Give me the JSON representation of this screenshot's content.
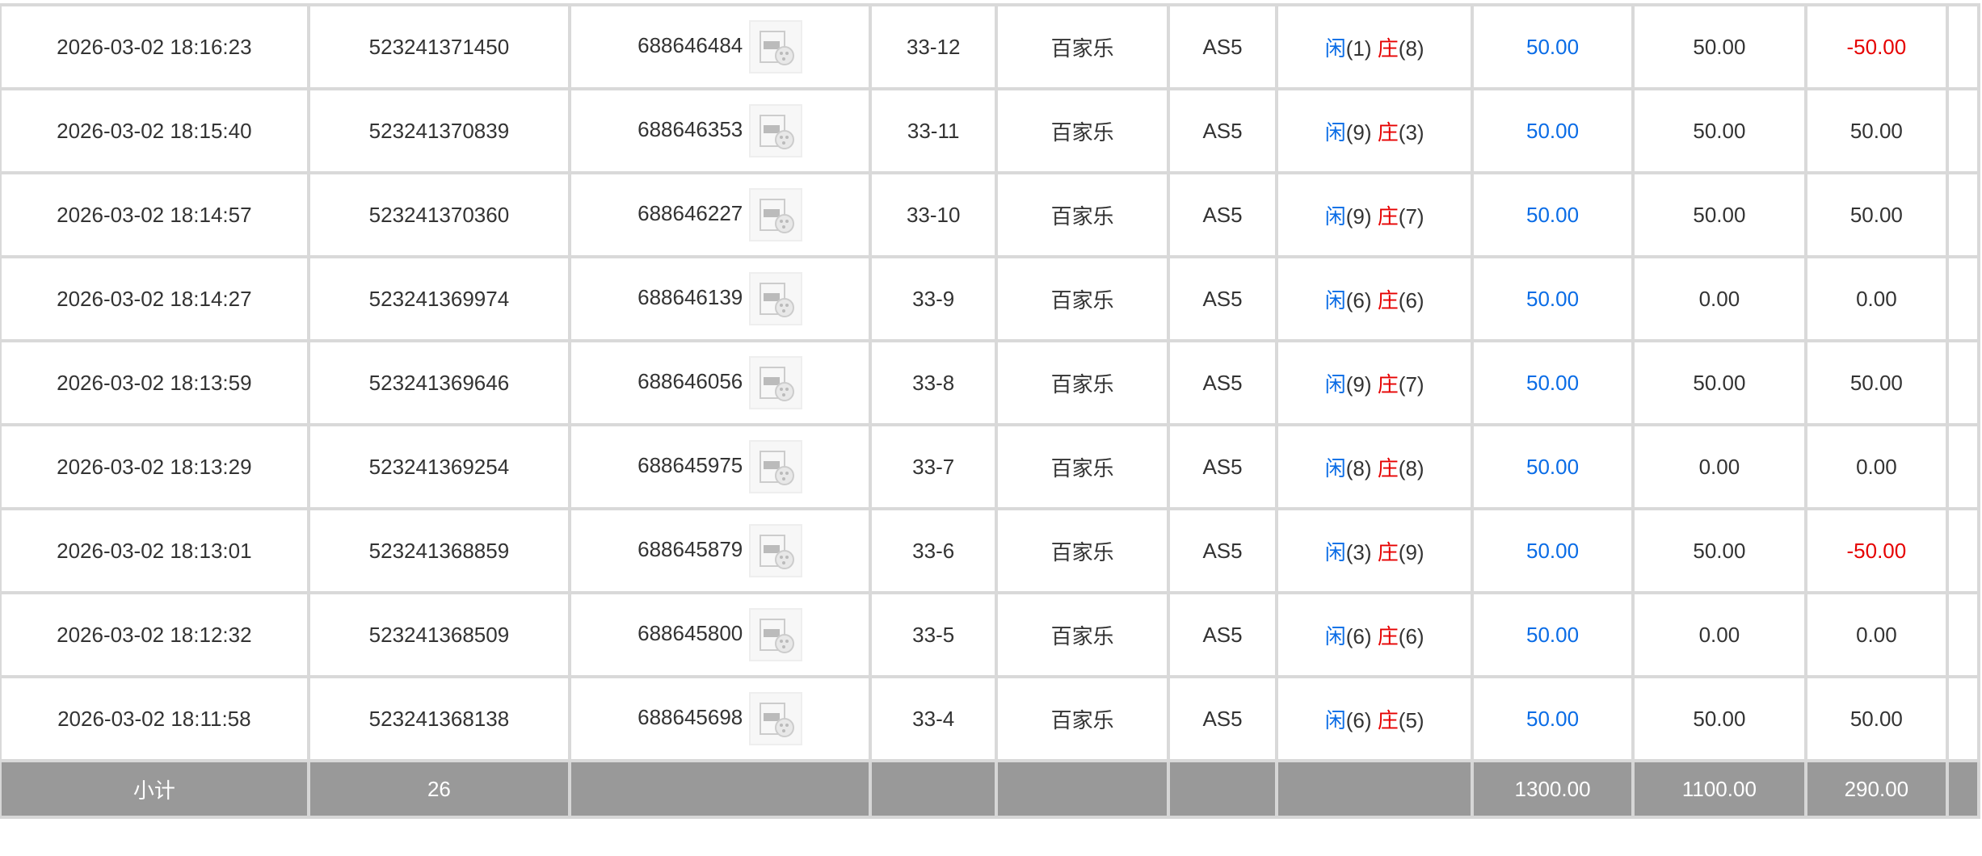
{
  "rows": [
    {
      "time": "2026-03-02 18:16:23",
      "order": "523241371450",
      "round": "688646484",
      "table": "33-12",
      "game": "百家乐",
      "room": "AS5",
      "player": "闲",
      "player_pts": "(1)",
      "banker": "庄",
      "banker_pts": "(8)",
      "bet": "50.00",
      "valid": "50.00",
      "result": "-50.00",
      "neg": true
    },
    {
      "time": "2026-03-02 18:15:40",
      "order": "523241370839",
      "round": "688646353",
      "table": "33-11",
      "game": "百家乐",
      "room": "AS5",
      "player": "闲",
      "player_pts": "(9)",
      "banker": "庄",
      "banker_pts": "(3)",
      "bet": "50.00",
      "valid": "50.00",
      "result": "50.00",
      "neg": false
    },
    {
      "time": "2026-03-02 18:14:57",
      "order": "523241370360",
      "round": "688646227",
      "table": "33-10",
      "game": "百家乐",
      "room": "AS5",
      "player": "闲",
      "player_pts": "(9)",
      "banker": "庄",
      "banker_pts": "(7)",
      "bet": "50.00",
      "valid": "50.00",
      "result": "50.00",
      "neg": false
    },
    {
      "time": "2026-03-02 18:14:27",
      "order": "523241369974",
      "round": "688646139",
      "table": "33-9",
      "game": "百家乐",
      "room": "AS5",
      "player": "闲",
      "player_pts": "(6)",
      "banker": "庄",
      "banker_pts": "(6)",
      "bet": "50.00",
      "valid": "0.00",
      "result": "0.00",
      "neg": false
    },
    {
      "time": "2026-03-02 18:13:59",
      "order": "523241369646",
      "round": "688646056",
      "table": "33-8",
      "game": "百家乐",
      "room": "AS5",
      "player": "闲",
      "player_pts": "(9)",
      "banker": "庄",
      "banker_pts": "(7)",
      "bet": "50.00",
      "valid": "50.00",
      "result": "50.00",
      "neg": false
    },
    {
      "time": "2026-03-02 18:13:29",
      "order": "523241369254",
      "round": "688645975",
      "table": "33-7",
      "game": "百家乐",
      "room": "AS5",
      "player": "闲",
      "player_pts": "(8)",
      "banker": "庄",
      "banker_pts": "(8)",
      "bet": "50.00",
      "valid": "0.00",
      "result": "0.00",
      "neg": false
    },
    {
      "time": "2026-03-02 18:13:01",
      "order": "523241368859",
      "round": "688645879",
      "table": "33-6",
      "game": "百家乐",
      "room": "AS5",
      "player": "闲",
      "player_pts": "(3)",
      "banker": "庄",
      "banker_pts": "(9)",
      "bet": "50.00",
      "valid": "50.00",
      "result": "-50.00",
      "neg": true
    },
    {
      "time": "2026-03-02 18:12:32",
      "order": "523241368509",
      "round": "688645800",
      "table": "33-5",
      "game": "百家乐",
      "room": "AS5",
      "player": "闲",
      "player_pts": "(6)",
      "banker": "庄",
      "banker_pts": "(6)",
      "bet": "50.00",
      "valid": "0.00",
      "result": "0.00",
      "neg": false
    },
    {
      "time": "2026-03-02 18:11:58",
      "order": "523241368138",
      "round": "688645698",
      "table": "33-4",
      "game": "百家乐",
      "room": "AS5",
      "player": "闲",
      "player_pts": "(6)",
      "banker": "庄",
      "banker_pts": "(5)",
      "bet": "50.00",
      "valid": "50.00",
      "result": "50.00",
      "neg": false
    }
  ],
  "subtotal": {
    "label": "小计",
    "count": "26",
    "bet": "1300.00",
    "valid": "1100.00",
    "result": "290.00"
  },
  "colors": {
    "player": "#0a6ce6",
    "banker": "#e60000",
    "negative": "#e60000",
    "subtotal_bg": "#999999"
  },
  "icons": {
    "replay": "video-replay-icon"
  }
}
